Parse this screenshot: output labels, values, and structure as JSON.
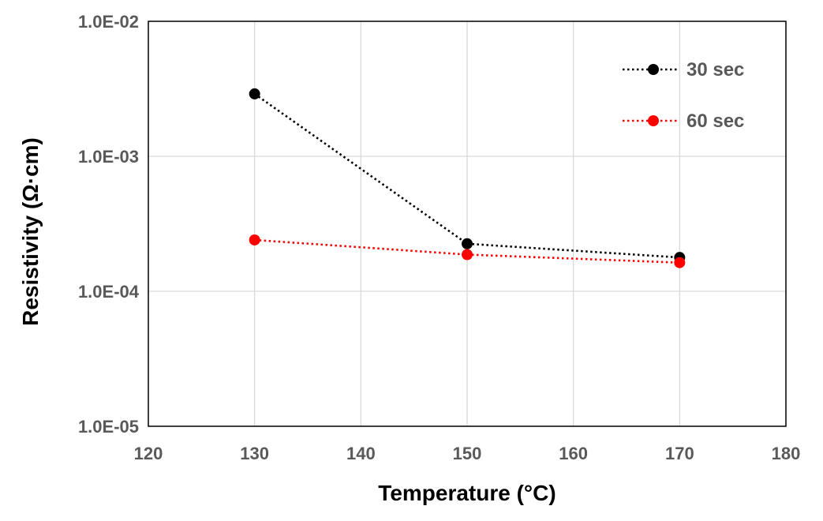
{
  "chart_data": {
    "type": "line",
    "title": "",
    "xlabel": "Temperature (°C)",
    "ylabel": "Resistivity (Ω·cm)",
    "xlim": [
      120,
      180
    ],
    "ylim": [
      1e-05,
      0.01
    ],
    "y_scale": "log",
    "grid": true,
    "legend_position": "top-right",
    "x_tick_labels": [
      "120",
      "130",
      "140",
      "150",
      "160",
      "170",
      "180"
    ],
    "x_ticks": [
      120,
      130,
      140,
      150,
      160,
      170,
      180
    ],
    "y_tick_labels": [
      "1.0E-05",
      "1.0E-04",
      "1.0E-03",
      "1.0E-02"
    ],
    "y_ticks": [
      1e-05,
      0.0001,
      0.001,
      0.01
    ],
    "series": [
      {
        "name": "30 sec",
        "color": "#000000",
        "line_style": "dotted",
        "x": [
          130,
          150,
          170
        ],
        "y": [
          0.0029,
          0.000225,
          0.000178
        ]
      },
      {
        "name": "60 sec",
        "color": "#ff0000",
        "line_style": "dotted",
        "x": [
          130,
          150,
          170
        ],
        "y": [
          0.00024,
          0.000187,
          0.000163
        ]
      }
    ]
  }
}
